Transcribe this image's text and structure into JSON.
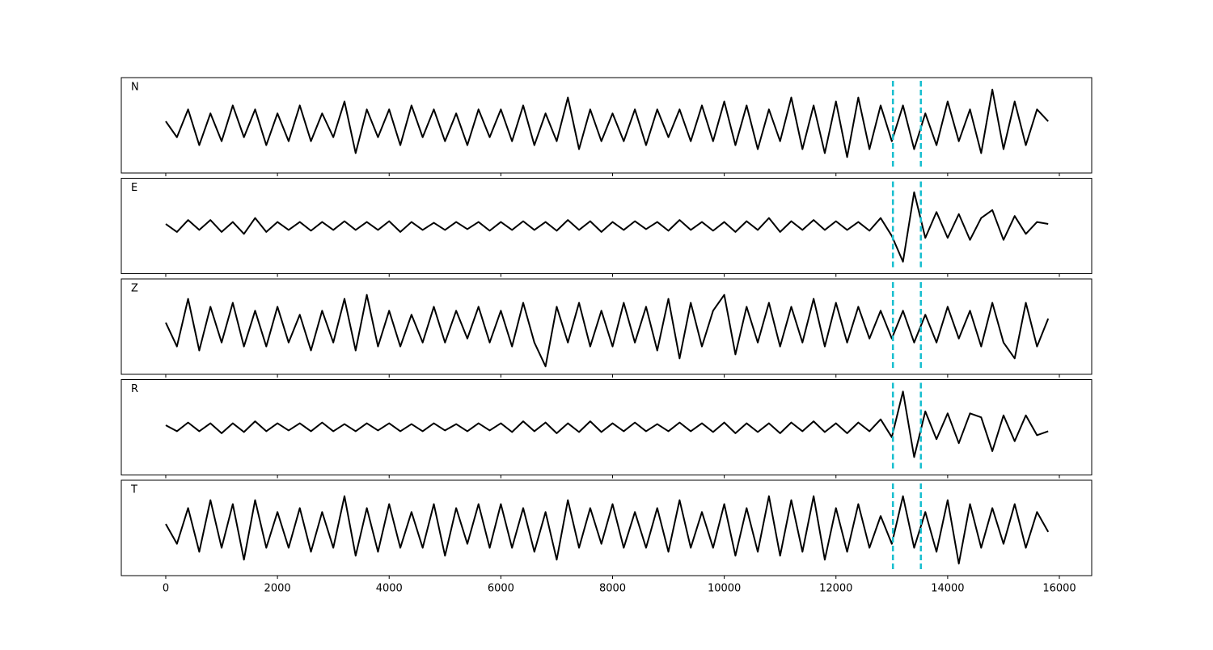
{
  "chart_data": {
    "type": "line",
    "x": [
      0,
      200,
      400,
      600,
      800,
      1000,
      1200,
      1400,
      1600,
      1800,
      2000,
      2200,
      2400,
      2600,
      2800,
      3000,
      3200,
      3400,
      3600,
      3800,
      4000,
      4200,
      4400,
      4600,
      4800,
      5000,
      5200,
      5400,
      5600,
      5800,
      6000,
      6200,
      6400,
      6600,
      6800,
      7000,
      7200,
      7400,
      7600,
      7800,
      8000,
      8200,
      8400,
      8600,
      8800,
      9000,
      9200,
      9400,
      9600,
      9800,
      10000,
      10200,
      10400,
      10600,
      10800,
      11000,
      11200,
      11400,
      11600,
      11800,
      12000,
      12200,
      12400,
      12600,
      12800,
      13000,
      13200,
      13400,
      13600,
      13800,
      14000,
      14200,
      14400,
      14600,
      14800,
      15000,
      15200,
      15400,
      15600,
      15800
    ],
    "xlim": [
      -796,
      16579
    ],
    "xticks": [
      0,
      2000,
      4000,
      6000,
      8000,
      10000,
      12000,
      14000,
      16000
    ],
    "ylim": [
      -1.2,
      1.2
    ],
    "markers": {
      "values": [
        13020,
        13520
      ],
      "color": "#17becf"
    },
    "series": [
      {
        "name": "N",
        "color": "#000000",
        "values": [
          0.1,
          -0.3,
          0.4,
          -0.5,
          0.3,
          -0.4,
          0.5,
          -0.3,
          0.4,
          -0.5,
          0.3,
          -0.4,
          0.5,
          -0.4,
          0.3,
          -0.3,
          0.6,
          -0.7,
          0.4,
          -0.3,
          0.4,
          -0.5,
          0.5,
          -0.3,
          0.4,
          -0.4,
          0.3,
          -0.5,
          0.4,
          -0.3,
          0.4,
          -0.4,
          0.5,
          -0.5,
          0.3,
          -0.4,
          0.7,
          -0.6,
          0.4,
          -0.4,
          0.3,
          -0.4,
          0.4,
          -0.5,
          0.4,
          -0.3,
          0.4,
          -0.4,
          0.5,
          -0.4,
          0.6,
          -0.5,
          0.5,
          -0.6,
          0.4,
          -0.4,
          0.7,
          -0.6,
          0.5,
          -0.7,
          0.6,
          -0.8,
          0.7,
          -0.6,
          0.5,
          -0.4,
          0.5,
          -0.6,
          0.3,
          -0.5,
          0.6,
          -0.4,
          0.4,
          -0.7,
          0.9,
          -0.6,
          0.6,
          -0.5,
          0.4,
          0.1
        ]
      },
      {
        "name": "E",
        "color": "#000000",
        "values": [
          0.05,
          -0.15,
          0.15,
          -0.1,
          0.15,
          -0.15,
          0.1,
          -0.2,
          0.2,
          -0.15,
          0.1,
          -0.1,
          0.1,
          -0.12,
          0.1,
          -0.1,
          0.12,
          -0.1,
          0.1,
          -0.1,
          0.12,
          -0.15,
          0.1,
          -0.1,
          0.08,
          -0.1,
          0.1,
          -0.08,
          0.1,
          -0.12,
          0.1,
          -0.1,
          0.12,
          -0.1,
          0.1,
          -0.12,
          0.15,
          -0.1,
          0.12,
          -0.15,
          0.1,
          -0.1,
          0.12,
          -0.08,
          0.1,
          -0.12,
          0.15,
          -0.1,
          0.1,
          -0.12,
          0.1,
          -0.15,
          0.12,
          -0.1,
          0.2,
          -0.15,
          0.12,
          -0.1,
          0.15,
          -0.1,
          0.12,
          -0.1,
          0.1,
          -0.12,
          0.2,
          -0.25,
          -0.9,
          0.85,
          -0.3,
          0.35,
          -0.3,
          0.3,
          -0.35,
          0.2,
          0.4,
          -0.35,
          0.25,
          -0.2,
          0.1,
          0.05
        ]
      },
      {
        "name": "Z",
        "color": "#000000",
        "values": [
          0.1,
          -0.5,
          0.7,
          -0.6,
          0.5,
          -0.4,
          0.6,
          -0.5,
          0.4,
          -0.5,
          0.5,
          -0.4,
          0.3,
          -0.6,
          0.4,
          -0.4,
          0.7,
          -0.6,
          0.8,
          -0.5,
          0.4,
          -0.5,
          0.3,
          -0.4,
          0.5,
          -0.4,
          0.4,
          -0.3,
          0.5,
          -0.4,
          0.4,
          -0.5,
          0.6,
          -0.4,
          -1.0,
          0.5,
          -0.4,
          0.6,
          -0.5,
          0.4,
          -0.5,
          0.6,
          -0.4,
          0.5,
          -0.6,
          0.7,
          -0.8,
          0.6,
          -0.5,
          0.4,
          0.8,
          -0.7,
          0.5,
          -0.4,
          0.6,
          -0.5,
          0.5,
          -0.4,
          0.7,
          -0.5,
          0.6,
          -0.4,
          0.5,
          -0.3,
          0.4,
          -0.3,
          0.4,
          -0.4,
          0.3,
          -0.4,
          0.5,
          -0.3,
          0.4,
          -0.5,
          0.6,
          -0.4,
          -0.8,
          0.6,
          -0.5,
          0.2
        ]
      },
      {
        "name": "R",
        "color": "#000000",
        "values": [
          0.05,
          -0.1,
          0.12,
          -0.1,
          0.1,
          -0.15,
          0.1,
          -0.12,
          0.15,
          -0.1,
          0.1,
          -0.08,
          0.1,
          -0.1,
          0.12,
          -0.1,
          0.08,
          -0.1,
          0.1,
          -0.08,
          0.1,
          -0.1,
          0.08,
          -0.1,
          0.1,
          -0.08,
          0.08,
          -0.1,
          0.1,
          -0.08,
          0.1,
          -0.12,
          0.15,
          -0.1,
          0.12,
          -0.15,
          0.1,
          -0.12,
          0.15,
          -0.12,
          0.1,
          -0.1,
          0.12,
          -0.1,
          0.08,
          -0.1,
          0.12,
          -0.1,
          0.1,
          -0.12,
          0.12,
          -0.15,
          0.1,
          -0.12,
          0.1,
          -0.15,
          0.12,
          -0.1,
          0.15,
          -0.12,
          0.1,
          -0.15,
          0.12,
          -0.1,
          0.2,
          -0.25,
          0.9,
          -0.75,
          0.4,
          -0.3,
          0.35,
          -0.4,
          0.35,
          0.25,
          -0.6,
          0.3,
          -0.35,
          0.3,
          -0.2,
          -0.1
        ]
      },
      {
        "name": "T",
        "color": "#000000",
        "values": [
          0.1,
          -0.4,
          0.5,
          -0.6,
          0.7,
          -0.5,
          0.6,
          -0.8,
          0.7,
          -0.5,
          0.4,
          -0.5,
          0.5,
          -0.6,
          0.4,
          -0.5,
          0.8,
          -0.7,
          0.5,
          -0.6,
          0.6,
          -0.5,
          0.4,
          -0.5,
          0.6,
          -0.7,
          0.5,
          -0.4,
          0.6,
          -0.5,
          0.6,
          -0.5,
          0.5,
          -0.6,
          0.4,
          -0.8,
          0.7,
          -0.5,
          0.5,
          -0.4,
          0.6,
          -0.5,
          0.4,
          -0.5,
          0.5,
          -0.6,
          0.7,
          -0.5,
          0.4,
          -0.5,
          0.6,
          -0.7,
          0.5,
          -0.6,
          0.8,
          -0.7,
          0.7,
          -0.6,
          0.8,
          -0.8,
          0.5,
          -0.6,
          0.6,
          -0.5,
          0.3,
          -0.4,
          0.8,
          -0.5,
          0.4,
          -0.6,
          0.7,
          -0.9,
          0.6,
          -0.5,
          0.5,
          -0.4,
          0.6,
          -0.5,
          0.4,
          -0.1
        ]
      }
    ]
  }
}
